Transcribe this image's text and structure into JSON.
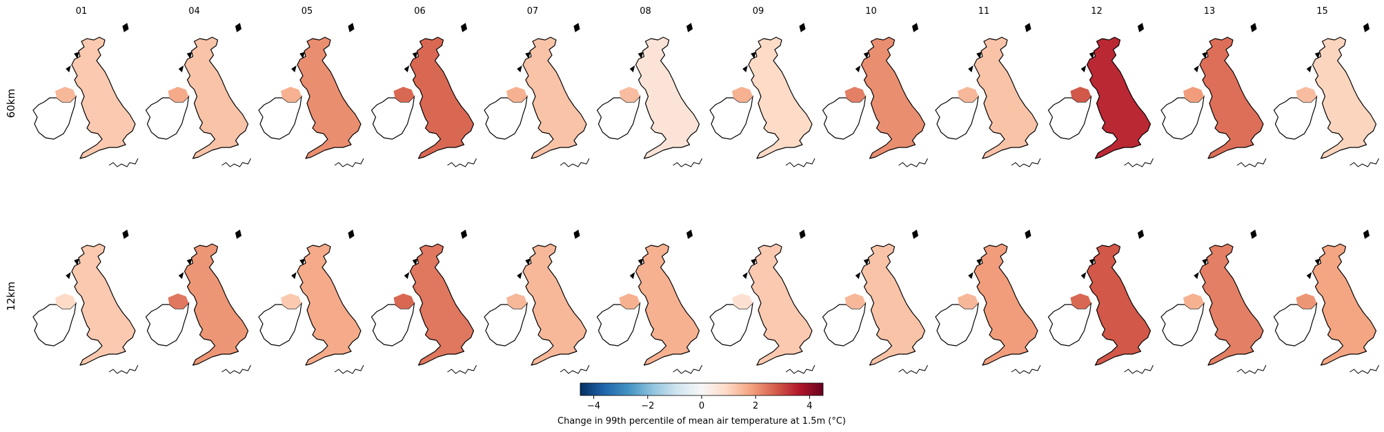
{
  "figure": {
    "columns": [
      "01",
      "04",
      "05",
      "06",
      "07",
      "08",
      "09",
      "10",
      "11",
      "12",
      "13",
      "15"
    ],
    "rows": [
      {
        "label": "60km",
        "mean_change": [
          1.2,
          1.3,
          2.1,
          2.6,
          1.3,
          0.6,
          0.9,
          2.1,
          1.3,
          3.4,
          2.5,
          1.0
        ],
        "northern_ireland_change": [
          1.5,
          1.7,
          1.6,
          2.6,
          1.6,
          1.4,
          1.6,
          2.3,
          1.5,
          2.8,
          1.9,
          1.4
        ]
      },
      {
        "label": "12km",
        "mean_change": [
          1.2,
          2.0,
          1.7,
          2.4,
          1.5,
          1.6,
          1.2,
          1.3,
          1.9,
          2.8,
          2.3,
          1.8
        ],
        "northern_ireland_change": [
          0.9,
          2.4,
          1.2,
          2.6,
          1.5,
          1.6,
          0.7,
          1.5,
          1.5,
          2.6,
          1.6,
          2.0
        ]
      }
    ],
    "colorbar": {
      "colormap": "RdBu_r",
      "range": [
        -4.5,
        4.5
      ],
      "ticks": [
        "−4",
        "−2",
        "0",
        "2",
        "4"
      ],
      "tick_values": [
        -4,
        -2,
        0,
        2,
        4
      ],
      "label": "Change in 99th percentile of mean air temperature at 1.5m (°C)"
    },
    "colors": {
      "coastline": "#000000",
      "land_outline": "#000000"
    }
  }
}
